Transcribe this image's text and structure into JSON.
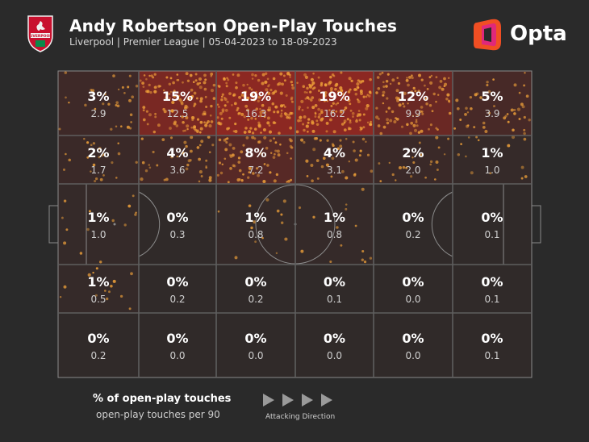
{
  "header": {
    "title": "Andy Robertson Open-Play Touches",
    "subtitle": "Liverpool | Premier League | 05-04-2023 to 18-09-2023",
    "crest_text": "LIVERPOOL",
    "brand": "Opta"
  },
  "legend": {
    "primary": "% of open-play touches",
    "secondary": "open-play touches per 90",
    "direction": "Attacking Direction"
  },
  "colors": {
    "background": "#2a2a2a",
    "heat": "#c0281e",
    "dot": "#f2a33a",
    "line": "#5e5e5e",
    "markings": "#8a8a8a",
    "opta_orange": "#f04e23",
    "opta_pink": "#e0287a"
  },
  "icons": [
    "liverpool-crest-icon",
    "opta-logo-icon",
    "direction-arrow-icon"
  ],
  "chart_data": {
    "type": "heatmap",
    "grid": {
      "rows": 5,
      "cols": 6
    },
    "attacking_direction": "right",
    "cells": [
      [
        {
          "pct": "3%",
          "p90": "2.9"
        },
        {
          "pct": "15%",
          "p90": "12.5"
        },
        {
          "pct": "19%",
          "p90": "16.3"
        },
        {
          "pct": "19%",
          "p90": "16.2"
        },
        {
          "pct": "12%",
          "p90": "9.9"
        },
        {
          "pct": "5%",
          "p90": "3.9"
        }
      ],
      [
        {
          "pct": "2%",
          "p90": "1.7"
        },
        {
          "pct": "4%",
          "p90": "3.6"
        },
        {
          "pct": "8%",
          "p90": "7.2"
        },
        {
          "pct": "4%",
          "p90": "3.1"
        },
        {
          "pct": "2%",
          "p90": "2.0"
        },
        {
          "pct": "1%",
          "p90": "1.0"
        }
      ],
      [
        {
          "pct": "1%",
          "p90": "1.0"
        },
        {
          "pct": "0%",
          "p90": "0.3"
        },
        {
          "pct": "1%",
          "p90": "0.8"
        },
        {
          "pct": "1%",
          "p90": "0.8"
        },
        {
          "pct": "0%",
          "p90": "0.2"
        },
        {
          "pct": "0%",
          "p90": "0.1"
        }
      ],
      [
        {
          "pct": "1%",
          "p90": "0.5"
        },
        {
          "pct": "0%",
          "p90": "0.2"
        },
        {
          "pct": "0%",
          "p90": "0.2"
        },
        {
          "pct": "0%",
          "p90": "0.1"
        },
        {
          "pct": "0%",
          "p90": "0.0"
        },
        {
          "pct": "0%",
          "p90": "0.1"
        }
      ],
      [
        {
          "pct": "0%",
          "p90": "0.2"
        },
        {
          "pct": "0%",
          "p90": "0.0"
        },
        {
          "pct": "0%",
          "p90": "0.0"
        },
        {
          "pct": "0%",
          "p90": "0.0"
        },
        {
          "pct": "0%",
          "p90": "0.0"
        },
        {
          "pct": "0%",
          "p90": "0.1"
        }
      ]
    ],
    "intensity": [
      [
        0.16,
        0.79,
        1.0,
        1.0,
        0.63,
        0.26
      ],
      [
        0.11,
        0.21,
        0.42,
        0.21,
        0.11,
        0.05
      ],
      [
        0.05,
        0.0,
        0.05,
        0.05,
        0.0,
        0.0
      ],
      [
        0.05,
        0.0,
        0.0,
        0.0,
        0.0,
        0.0
      ],
      [
        0.0,
        0.0,
        0.0,
        0.0,
        0.0,
        0.0
      ]
    ]
  }
}
